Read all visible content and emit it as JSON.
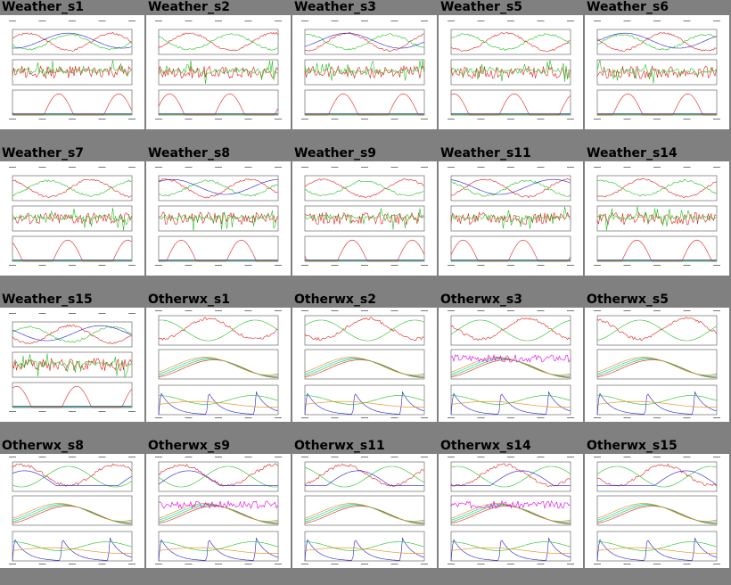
{
  "gallery": {
    "thumbnails": [
      {
        "label": "Weather_s1",
        "kind": "weather",
        "variant": 1
      },
      {
        "label": "Weather_s2",
        "kind": "weather",
        "variant": 2
      },
      {
        "label": "Weather_s3",
        "kind": "weather",
        "variant": 3
      },
      {
        "label": "Weather_s5",
        "kind": "weather",
        "variant": 4
      },
      {
        "label": "Weather_s6",
        "kind": "weather",
        "variant": 5
      },
      {
        "label": "Weather_s7",
        "kind": "weather",
        "variant": 6
      },
      {
        "label": "Weather_s8",
        "kind": "weather",
        "variant": 7
      },
      {
        "label": "Weather_s9",
        "kind": "weather",
        "variant": 8
      },
      {
        "label": "Weather_s11",
        "kind": "weather",
        "variant": 9
      },
      {
        "label": "Weather_s14",
        "kind": "weather",
        "variant": 10
      },
      {
        "label": "Weather_s15",
        "kind": "weather",
        "variant": 11
      },
      {
        "label": "Otherwx_s1",
        "kind": "otherwx",
        "variant": 1
      },
      {
        "label": "Otherwx_s2",
        "kind": "otherwx",
        "variant": 2
      },
      {
        "label": "Otherwx_s3",
        "kind": "otherwx",
        "variant": 3
      },
      {
        "label": "Otherwx_s5",
        "kind": "otherwx",
        "variant": 4
      },
      {
        "label": "Otherwx_s8",
        "kind": "otherwx",
        "variant": 5
      },
      {
        "label": "Otherwx_s9",
        "kind": "otherwx",
        "variant": 6
      },
      {
        "label": "Otherwx_s11",
        "kind": "otherwx",
        "variant": 7
      },
      {
        "label": "Otherwx_s14",
        "kind": "otherwx",
        "variant": 8
      },
      {
        "label": "Otherwx_s15",
        "kind": "otherwx",
        "variant": 9
      }
    ]
  },
  "colors": {
    "background": "#808080",
    "thumbnail": "#ffffff",
    "trace_red": "#e0201c",
    "trace_green": "#22c022",
    "trace_blue": "#2020d0",
    "trace_cyan": "#00c8d8",
    "trace_magenta": "#e000e0",
    "trace_orange": "#f08000",
    "frame": "#303030"
  }
}
